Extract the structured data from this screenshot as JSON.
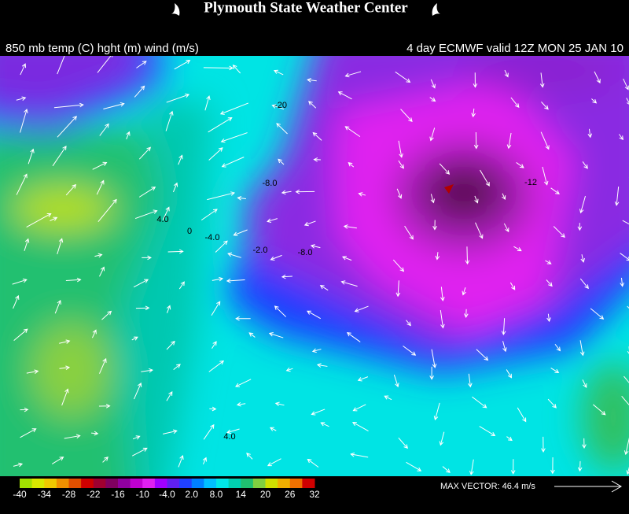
{
  "header": {
    "title": "Plymouth State Weather Center",
    "left": "850 mb temp (C) hght (m) wind (m/s)",
    "right": "4 day ECMWF valid 12Z MON 25 JAN 10"
  },
  "map": {
    "contour_labels": [
      "-20",
      "-8.0",
      "-12",
      "4.0",
      "0",
      "-4.0",
      "-2.0",
      "-8.0",
      "4.0"
    ]
  },
  "colorbar": {
    "labels": [
      "-40",
      "-34",
      "-28",
      "-22",
      "-16",
      "-10",
      "-4.0",
      "2.0",
      "8.0",
      "14",
      "20",
      "26",
      "32"
    ]
  },
  "max_vector": "MAX VECTOR:  46.4 m/s"
}
